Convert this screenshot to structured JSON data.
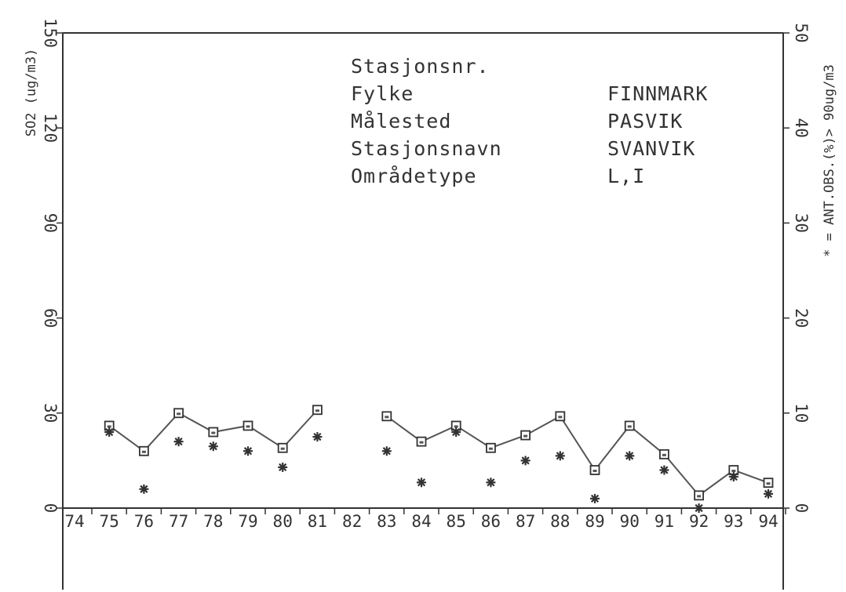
{
  "chart_data": {
    "type": "line",
    "ylabel_left": "SO2 (ug/m3)",
    "ylabel_right": "* = ANT.OBS.(%)> 90ug/m3",
    "ylim_left": [
      0,
      150
    ],
    "ylim_right": [
      0,
      50
    ],
    "yticks_left": [
      "0",
      "30",
      "60",
      "90",
      "120",
      "150"
    ],
    "yticks_right": [
      "0",
      "10",
      "20",
      "30",
      "40",
      "50"
    ],
    "x_categories": [
      "74",
      "75",
      "76",
      "77",
      "78",
      "79",
      "80",
      "81",
      "82",
      "83",
      "84",
      "85",
      "86",
      "87",
      "88",
      "89",
      "90",
      "91",
      "92",
      "93",
      "94"
    ],
    "series": [
      {
        "axis": "left",
        "marker": "square",
        "x": [
          "75",
          "76",
          "77",
          "78",
          "79",
          "80",
          "81",
          "83",
          "84",
          "85",
          "86",
          "87",
          "88",
          "89",
          "90",
          "91",
          "92",
          "93",
          "94"
        ],
        "values": [
          26,
          18,
          30,
          24,
          26,
          19,
          31,
          29,
          21,
          26,
          19,
          23,
          29,
          12,
          26,
          17,
          4,
          12,
          8
        ],
        "segments": [
          [
            "75",
            "81"
          ],
          [
            "83",
            "94"
          ]
        ]
      },
      {
        "axis": "right",
        "marker": "star",
        "x": [
          "75",
          "76",
          "77",
          "78",
          "79",
          "80",
          "81",
          "83",
          "84",
          "85",
          "86",
          "87",
          "88",
          "89",
          "90",
          "91",
          "92",
          "93",
          "94"
        ],
        "values": [
          8,
          2,
          7,
          6.5,
          6,
          4.3,
          7.5,
          6,
          2.7,
          8,
          2.7,
          5,
          5.5,
          1,
          5.5,
          4,
          0,
          3.3,
          1.5
        ]
      }
    ],
    "grid": false,
    "legend": "none"
  },
  "info_box": {
    "rows": [
      {
        "label": "Stasjonsnr.",
        "value": ""
      },
      {
        "label": "Fylke",
        "value": "FINNMARK"
      },
      {
        "label": "Målested",
        "value": "PASVIK"
      },
      {
        "label": "Stasjonsnavn",
        "value": "SVANVIK"
      },
      {
        "label": "Områdetype",
        "value": "L,I"
      }
    ]
  }
}
